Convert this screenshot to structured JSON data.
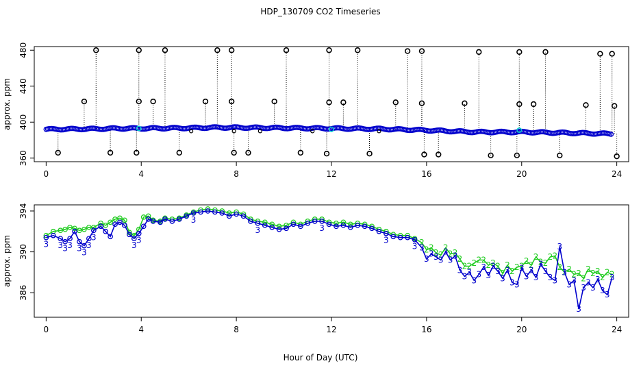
{
  "title": "HDP_130709  CO2 Timeseries",
  "xlabel": "Hour of Day (UTC)",
  "colors": {
    "primary": "#0000CC",
    "secondary": "#22CC22",
    "outlier": "#000000",
    "highlight": "#00CCCC"
  },
  "chart_data": [
    {
      "type": "scatter",
      "name": "top-panel",
      "ylabel": "approx. ppm",
      "xlim": [
        -0.5,
        24.5
      ],
      "ylim": [
        356,
        484
      ],
      "xticks": [
        0,
        4,
        8,
        12,
        16,
        20,
        24
      ],
      "yticks": [
        360,
        400,
        440,
        480
      ],
      "baseline": [
        [
          0,
          392
        ],
        [
          2,
          392.5
        ],
        [
          3,
          393
        ],
        [
          4,
          393
        ],
        [
          6,
          393.5
        ],
        [
          7,
          394
        ],
        [
          8,
          394
        ],
        [
          10,
          393.5
        ],
        [
          12,
          393
        ],
        [
          14,
          392.5
        ],
        [
          16,
          391
        ],
        [
          18,
          389
        ],
        [
          20,
          389
        ],
        [
          22,
          388
        ],
        [
          23.8,
          387
        ]
      ],
      "outliers_high": [
        [
          1.6,
          423
        ],
        [
          2.1,
          480
        ],
        [
          3.9,
          480
        ],
        [
          3.9,
          423
        ],
        [
          4.5,
          423
        ],
        [
          5.0,
          480
        ],
        [
          6.7,
          423
        ],
        [
          7.2,
          480
        ],
        [
          7.8,
          480
        ],
        [
          7.8,
          423
        ],
        [
          9.6,
          423
        ],
        [
          10.1,
          480
        ],
        [
          11.9,
          480
        ],
        [
          11.9,
          422
        ],
        [
          12.5,
          422
        ],
        [
          13.1,
          480
        ],
        [
          14.7,
          422
        ],
        [
          15.2,
          479
        ],
        [
          15.8,
          479
        ],
        [
          15.8,
          421
        ],
        [
          17.6,
          421
        ],
        [
          18.2,
          478
        ],
        [
          19.9,
          478
        ],
        [
          19.9,
          420
        ],
        [
          20.5,
          420
        ],
        [
          21.0,
          478
        ],
        [
          22.7,
          419
        ],
        [
          23.3,
          476
        ],
        [
          23.8,
          476
        ],
        [
          23.9,
          418
        ]
      ],
      "outliers_low": [
        [
          0.5,
          366
        ],
        [
          2.7,
          366
        ],
        [
          3.8,
          366
        ],
        [
          5.6,
          366
        ],
        [
          7.9,
          366
        ],
        [
          8.5,
          366
        ],
        [
          10.7,
          366
        ],
        [
          11.8,
          365
        ],
        [
          13.6,
          365
        ],
        [
          15.9,
          364
        ],
        [
          16.5,
          364
        ],
        [
          18.7,
          363
        ],
        [
          19.8,
          363
        ],
        [
          21.6,
          363
        ],
        [
          24.0,
          362
        ]
      ],
      "small_markers": [
        [
          6.1,
          390
        ],
        [
          9.0,
          390
        ],
        [
          11.2,
          390
        ],
        [
          14.0,
          390
        ],
        [
          7.9,
          390
        ]
      ],
      "highlight_points": [
        [
          3.9,
          393
        ],
        [
          12.0,
          392
        ],
        [
          19.9,
          391
        ]
      ]
    },
    {
      "type": "line",
      "name": "bottom-panel",
      "ylabel": "approx. ppm",
      "xlim": [
        -0.5,
        24.5
      ],
      "ylim": [
        383.6,
        394.6
      ],
      "xticks": [
        0,
        4,
        8,
        12,
        16,
        20,
        24
      ],
      "yticks": [
        386,
        390,
        394
      ],
      "point_labels": [
        "2",
        "3"
      ],
      "series": [
        {
          "name": "3",
          "points": [
            [
              0,
              391.4
            ],
            [
              0.3,
              391.6
            ],
            [
              0.6,
              391.3
            ],
            [
              0.8,
              391.0
            ],
            [
              1.0,
              391.3
            ],
            [
              1.2,
              392.0
            ],
            [
              1.4,
              391.0
            ],
            [
              1.6,
              390.6
            ],
            [
              1.8,
              391.3
            ],
            [
              2.0,
              392.1
            ],
            [
              2.3,
              392.5
            ],
            [
              2.5,
              392.0
            ],
            [
              2.7,
              391.5
            ],
            [
              2.9,
              392.7
            ],
            [
              3.1,
              392.9
            ],
            [
              3.3,
              392.6
            ],
            [
              3.5,
              391.7
            ],
            [
              3.7,
              391.3
            ],
            [
              3.9,
              391.8
            ],
            [
              4.1,
              392.5
            ],
            [
              4.3,
              393.2
            ],
            [
              4.5,
              393.0
            ],
            [
              4.8,
              392.9
            ],
            [
              5.0,
              393.2
            ],
            [
              5.3,
              393.0
            ],
            [
              5.6,
              393.2
            ],
            [
              5.9,
              393.5
            ],
            [
              6.2,
              393.8
            ],
            [
              6.5,
              393.9
            ],
            [
              6.8,
              394.0
            ],
            [
              7.1,
              393.9
            ],
            [
              7.4,
              393.8
            ],
            [
              7.7,
              393.5
            ],
            [
              8.0,
              393.7
            ],
            [
              8.3,
              393.5
            ],
            [
              8.6,
              393.0
            ],
            [
              8.9,
              392.8
            ],
            [
              9.2,
              392.6
            ],
            [
              9.5,
              392.4
            ],
            [
              9.8,
              392.2
            ],
            [
              10.1,
              392.3
            ],
            [
              10.4,
              392.7
            ],
            [
              10.7,
              392.5
            ],
            [
              11.0,
              392.8
            ],
            [
              11.3,
              393.0
            ],
            [
              11.6,
              393.0
            ],
            [
              11.9,
              392.7
            ],
            [
              12.2,
              392.5
            ],
            [
              12.5,
              392.6
            ],
            [
              12.8,
              392.4
            ],
            [
              13.1,
              392.6
            ],
            [
              13.4,
              392.5
            ],
            [
              13.7,
              392.3
            ],
            [
              14.0,
              392.0
            ],
            [
              14.3,
              391.8
            ],
            [
              14.6,
              391.5
            ],
            [
              14.9,
              391.4
            ],
            [
              15.2,
              391.4
            ],
            [
              15.5,
              391.2
            ],
            [
              15.8,
              390.4
            ],
            [
              16.0,
              389.3
            ],
            [
              16.2,
              389.8
            ],
            [
              16.4,
              389.5
            ],
            [
              16.6,
              389.2
            ],
            [
              16.8,
              390.0
            ],
            [
              17.0,
              389.2
            ],
            [
              17.2,
              389.6
            ],
            [
              17.4,
              388.2
            ],
            [
              17.6,
              387.6
            ],
            [
              17.8,
              388.0
            ],
            [
              18.0,
              387.2
            ],
            [
              18.2,
              387.8
            ],
            [
              18.4,
              388.5
            ],
            [
              18.6,
              387.7
            ],
            [
              18.8,
              388.6
            ],
            [
              19.0,
              388.1
            ],
            [
              19.2,
              387.4
            ],
            [
              19.4,
              388.2
            ],
            [
              19.6,
              387.0
            ],
            [
              19.8,
              386.8
            ],
            [
              20.0,
              388.4
            ],
            [
              20.2,
              387.6
            ],
            [
              20.4,
              388.2
            ],
            [
              20.6,
              387.5
            ],
            [
              20.8,
              388.8
            ],
            [
              21.0,
              388.1
            ],
            [
              21.2,
              387.5
            ],
            [
              21.4,
              387.2
            ],
            [
              21.6,
              390.5
            ],
            [
              21.8,
              388.0
            ],
            [
              22.0,
              386.8
            ],
            [
              22.2,
              387.2
            ],
            [
              22.4,
              384.4
            ],
            [
              22.6,
              386.5
            ],
            [
              22.8,
              387.0
            ],
            [
              23.0,
              386.5
            ],
            [
              23.2,
              387.3
            ],
            [
              23.4,
              386.2
            ],
            [
              23.6,
              385.8
            ],
            [
              23.8,
              387.5
            ]
          ]
        },
        {
          "name": "2",
          "points": [
            [
              0,
              391.6
            ],
            [
              0.3,
              392.0
            ],
            [
              0.6,
              392.1
            ],
            [
              0.8,
              392.2
            ],
            [
              1.0,
              392.4
            ],
            [
              1.2,
              392.3
            ],
            [
              1.4,
              392.1
            ],
            [
              1.6,
              392.2
            ],
            [
              1.8,
              392.4
            ],
            [
              2.0,
              392.4
            ],
            [
              2.3,
              392.8
            ],
            [
              2.5,
              392.6
            ],
            [
              2.7,
              392.9
            ],
            [
              2.9,
              393.2
            ],
            [
              3.1,
              393.3
            ],
            [
              3.3,
              393.1
            ],
            [
              3.5,
              391.9
            ],
            [
              3.7,
              391.6
            ],
            [
              3.9,
              392.2
            ],
            [
              4.1,
              393.4
            ],
            [
              4.3,
              393.5
            ],
            [
              4.5,
              393.1
            ],
            [
              4.8,
              393.0
            ],
            [
              5.0,
              393.3
            ],
            [
              5.3,
              393.2
            ],
            [
              5.6,
              393.3
            ],
            [
              5.9,
              393.6
            ],
            [
              6.2,
              393.9
            ],
            [
              6.5,
              394.1
            ],
            [
              6.8,
              394.2
            ],
            [
              7.1,
              394.1
            ],
            [
              7.4,
              394.0
            ],
            [
              7.7,
              393.8
            ],
            [
              8.0,
              393.9
            ],
            [
              8.3,
              393.7
            ],
            [
              8.6,
              393.2
            ],
            [
              8.9,
              393.0
            ],
            [
              9.2,
              392.9
            ],
            [
              9.5,
              392.7
            ],
            [
              9.8,
              392.5
            ],
            [
              10.1,
              392.6
            ],
            [
              10.4,
              392.9
            ],
            [
              10.7,
              392.7
            ],
            [
              11.0,
              393.0
            ],
            [
              11.3,
              393.2
            ],
            [
              11.6,
              393.2
            ],
            [
              11.9,
              392.9
            ],
            [
              12.2,
              392.8
            ],
            [
              12.5,
              392.9
            ],
            [
              12.8,
              392.7
            ],
            [
              13.1,
              392.8
            ],
            [
              13.4,
              392.7
            ],
            [
              13.7,
              392.5
            ],
            [
              14.0,
              392.2
            ],
            [
              14.3,
              392.0
            ],
            [
              14.6,
              391.7
            ],
            [
              14.9,
              391.6
            ],
            [
              15.2,
              391.6
            ],
            [
              15.5,
              391.3
            ],
            [
              15.8,
              390.9
            ],
            [
              16.0,
              390.2
            ],
            [
              16.2,
              390.4
            ],
            [
              16.4,
              389.9
            ],
            [
              16.6,
              389.7
            ],
            [
              16.8,
              390.4
            ],
            [
              17.0,
              389.8
            ],
            [
              17.2,
              389.9
            ],
            [
              17.4,
              389.3
            ],
            [
              17.6,
              388.6
            ],
            [
              17.8,
              388.6
            ],
            [
              18.0,
              388.9
            ],
            [
              18.2,
              389.2
            ],
            [
              18.4,
              389.2
            ],
            [
              18.6,
              388.7
            ],
            [
              18.8,
              388.9
            ],
            [
              19.0,
              388.6
            ],
            [
              19.2,
              387.9
            ],
            [
              19.4,
              388.7
            ],
            [
              19.6,
              388.1
            ],
            [
              19.8,
              388.5
            ],
            [
              20.0,
              388.6
            ],
            [
              20.2,
              389.1
            ],
            [
              20.4,
              388.7
            ],
            [
              20.6,
              389.5
            ],
            [
              20.8,
              389.0
            ],
            [
              21.0,
              388.9
            ],
            [
              21.2,
              389.5
            ],
            [
              21.4,
              389.6
            ],
            [
              21.6,
              388.5
            ],
            [
              21.8,
              388.0
            ],
            [
              22.0,
              388.3
            ],
            [
              22.2,
              387.8
            ],
            [
              22.4,
              387.9
            ],
            [
              22.6,
              387.4
            ],
            [
              22.8,
              388.3
            ],
            [
              23.0,
              387.9
            ],
            [
              23.2,
              388.1
            ],
            [
              23.4,
              387.5
            ],
            [
              23.6,
              388.0
            ],
            [
              23.8,
              387.8
            ]
          ]
        }
      ]
    }
  ]
}
